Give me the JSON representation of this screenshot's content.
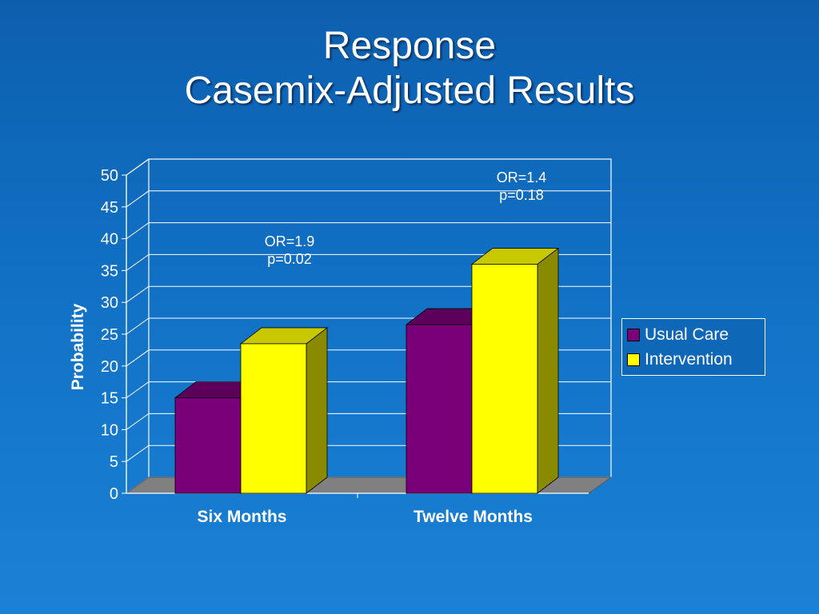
{
  "slide": {
    "title_line1": "Response",
    "title_line2": "Casemix-Adjusted Results"
  },
  "chart_data": {
    "type": "bar",
    "categories": [
      "Six Months",
      "Twelve Months"
    ],
    "series": [
      {
        "name": "Usual Care",
        "values": [
          15,
          26.5
        ],
        "color": "#7a007a",
        "top_color": "#5c005c",
        "side_color": "#4a004a"
      },
      {
        "name": "Intervention",
        "values": [
          23.5,
          36
        ],
        "color": "#ffff00",
        "top_color": "#c8c800",
        "side_color": "#8a8a00"
      }
    ],
    "title": "",
    "xlabel": "",
    "ylabel": "Probability",
    "ylim": [
      0,
      50
    ],
    "yticks": [
      0,
      5,
      10,
      15,
      20,
      25,
      30,
      35,
      40,
      45,
      50
    ],
    "grid": true,
    "legend_position": "right",
    "annotations": [
      {
        "category": "Six Months",
        "line1": "OR=1.9",
        "line2": "p=0.02"
      },
      {
        "category": "Twelve Months",
        "line1": "OR=1.4",
        "line2": "p=0.18"
      }
    ],
    "colors": {
      "gridline": "#ffffff",
      "floor": "#808080",
      "axis": "#ffffff"
    }
  }
}
